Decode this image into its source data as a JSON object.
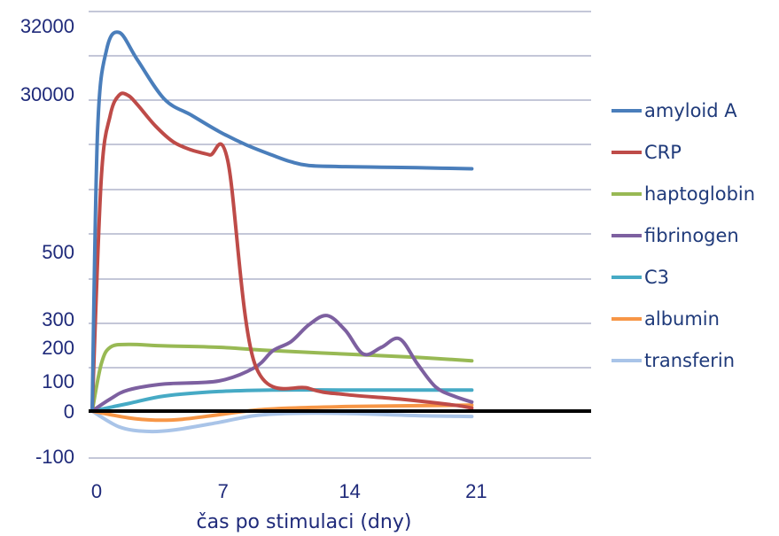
{
  "chart_data": {
    "type": "line",
    "xlabel": "čas po stimulaci (dny)",
    "ylabel": "",
    "x_ticks": [
      "0",
      "7",
      "14",
      "21"
    ],
    "y_ticks": [
      "32000",
      "30000",
      "500",
      "300",
      "200",
      "100",
      "0",
      "-100"
    ],
    "y_scale": "nonlinear (broken axis)",
    "grid": true,
    "legend": "right",
    "zero_line_color": "#000000",
    "series": [
      {
        "name": "amyloid A",
        "color": "#4a7ebb",
        "x": [
          0,
          0.3,
          0.8,
          1.5,
          2.5,
          4,
          5.5,
          7,
          8.5,
          10,
          11,
          12,
          14,
          16,
          18,
          21
        ],
        "y": [
          0,
          23000,
          31300,
          31800,
          31000,
          29000,
          26000,
          23000,
          20500,
          18500,
          17300,
          16600,
          16400,
          16300,
          16200,
          16000
        ]
      },
      {
        "name": "CRP",
        "color": "#be4b48",
        "x": [
          0,
          0.5,
          1,
          1.5,
          2,
          2.5,
          3.5,
          4.5,
          5.5,
          6.5,
          7.5,
          9,
          12,
          14,
          17,
          20,
          21
        ],
        "y": [
          0,
          14000,
          26000,
          29800,
          29700,
          28000,
          24000,
          21000,
          19500,
          18600,
          17500,
          150,
          75,
          55,
          40,
          20,
          10
        ]
      },
      {
        "name": "haptoglobin",
        "color": "#98b954",
        "x": [
          0,
          0.5,
          1,
          2,
          4,
          7,
          10,
          14,
          18,
          21
        ],
        "y": [
          0,
          150,
          200,
          210,
          205,
          200,
          190,
          180,
          170,
          160
        ]
      },
      {
        "name": "fibrinogen",
        "color": "#7d60a0",
        "x": [
          0,
          1,
          2,
          4,
          7,
          9,
          10,
          11,
          12,
          13,
          14,
          15,
          16,
          17,
          18,
          19,
          20,
          21
        ],
        "y": [
          0,
          40,
          70,
          90,
          100,
          140,
          190,
          220,
          280,
          310,
          260,
          180,
          200,
          230,
          150,
          80,
          50,
          30
        ]
      },
      {
        "name": "C3",
        "color": "#46aac5",
        "x": [
          0,
          2,
          4,
          7,
          10,
          14,
          18,
          21
        ],
        "y": [
          0,
          25,
          50,
          65,
          70,
          70,
          70,
          70
        ]
      },
      {
        "name": "albumin",
        "color": "#f79646",
        "x": [
          0,
          2,
          3.5,
          5,
          7,
          9,
          11,
          14,
          18,
          21
        ],
        "y": [
          0,
          -15,
          -20,
          -18,
          -8,
          3,
          10,
          15,
          18,
          20
        ]
      },
      {
        "name": "transferin",
        "color": "#a9c4e8",
        "x": [
          0,
          1.5,
          3,
          4.5,
          7,
          9,
          11,
          14,
          18,
          21
        ],
        "y": [
          0,
          -35,
          -45,
          -42,
          -25,
          -10,
          -5,
          -5,
          -10,
          -12
        ]
      }
    ]
  }
}
